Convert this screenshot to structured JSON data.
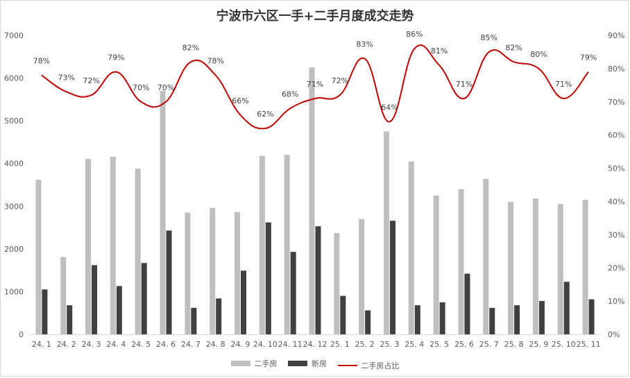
{
  "chart_data": {
    "type": "bar+line",
    "title": "宁波市六区一手+二手月度成交走势",
    "categories": [
      "24. 1",
      "24. 2",
      "24. 3",
      "24. 4",
      "24. 5",
      "24. 6",
      "24. 7",
      "24. 8",
      "24. 9",
      "24. 10",
      "24. 11",
      "24. 12",
      "25. 1",
      "25. 2",
      "25. 3",
      "25. 4",
      "25. 5",
      "25. 6",
      "25. 7",
      "25. 8",
      "25. 9",
      "25. 10",
      "25. 11"
    ],
    "series": [
      {
        "name": "二手房",
        "type": "bar",
        "color": "#bfbfbf",
        "values": [
          3620,
          1810,
          4110,
          4160,
          3880,
          5700,
          2850,
          2960,
          2860,
          4180,
          4200,
          6250,
          2370,
          2700,
          4750,
          4050,
          3250,
          3400,
          3640,
          3100,
          3180,
          3050,
          3150
        ]
      },
      {
        "name": "新房",
        "type": "bar",
        "color": "#404040",
        "values": [
          1050,
          680,
          1620,
          1130,
          1670,
          2430,
          620,
          840,
          1490,
          2620,
          1930,
          2530,
          900,
          560,
          2660,
          680,
          750,
          1420,
          620,
          680,
          780,
          1230,
          820
        ]
      },
      {
        "name": "二手房占比",
        "type": "line",
        "color": "#c00000",
        "axis": "right",
        "values": [
          78,
          73,
          72,
          79,
          70,
          70,
          82,
          78,
          66,
          62,
          68,
          71,
          72,
          83,
          64,
          86,
          81,
          71,
          85,
          82,
          80,
          71,
          79
        ],
        "labels": [
          "78%",
          "73%",
          "72%",
          "79%",
          "70%",
          "70%",
          "82%",
          "78%",
          "66%",
          "62%",
          "68%",
          "71%",
          "72%",
          "83%",
          "64%",
          "86%",
          "81%",
          "71%",
          "85%",
          "82%",
          "80%",
          "71%",
          "79%"
        ]
      }
    ],
    "y_left": {
      "ylim": [
        0,
        7000
      ],
      "ticks": [
        "0",
        "1000",
        "2000",
        "3000",
        "4000",
        "5000",
        "6000",
        "7000"
      ]
    },
    "y_right": {
      "ylim": [
        0,
        90
      ],
      "ticks": [
        "0%",
        "10%",
        "20%",
        "30%",
        "40%",
        "50%",
        "60%",
        "70%",
        "80%",
        "90%"
      ]
    },
    "legend_position": "bottom",
    "grid": false
  }
}
